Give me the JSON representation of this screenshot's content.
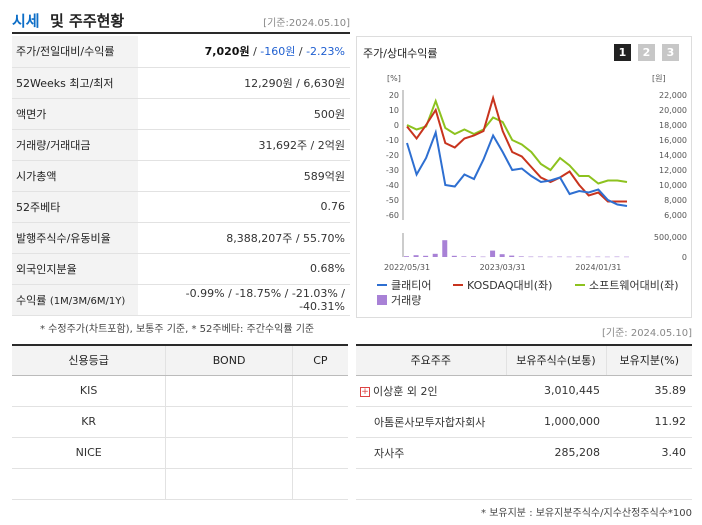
{
  "header": {
    "title_part1": "시세",
    "title_part2": "및 주주현황",
    "date": "[기준:2024.05.10]"
  },
  "info_rows": [
    {
      "label": "주가/전일대비/수익률",
      "price": "7,020원",
      "sep1": " / ",
      "change": "-160원",
      "sep2": " / ",
      "rate": "-2.23%"
    },
    {
      "label": "52Weeks 최고/최저",
      "value": "12,290원 / 6,630원"
    },
    {
      "label": "액면가",
      "value": "500원"
    },
    {
      "label": "거래량/거래대금",
      "value": "31,692주 / 2억원"
    },
    {
      "label": "시가총액",
      "value": "589억원"
    },
    {
      "label": "52주베타",
      "value": "0.76"
    },
    {
      "label": "발행주식수/유동비율",
      "value": "8,388,207주 / 55.70%"
    },
    {
      "label": "외국인지분율",
      "value": "0.68%"
    },
    {
      "label": "수익률",
      "label_sub": "(1M/3M/6M/1Y)",
      "value": "-0.99% / -18.75% / -21.03% / -40.31%"
    }
  ],
  "chart_panel": {
    "title": "주가/상대수익률",
    "tabs": [
      "1",
      "2",
      "3"
    ]
  },
  "chart_data": {
    "type": "line",
    "left_axis_unit": "[%]",
    "right_axis_unit": "[원]",
    "left_ticks": [
      "20",
      "10",
      "0",
      "-10",
      "-20",
      "-30",
      "-40",
      "-50",
      "-60"
    ],
    "right_ticks": [
      "22,000",
      "20,000",
      "18,000",
      "16,000",
      "14,000",
      "12,000",
      "10,000",
      "8,000",
      "6,000"
    ],
    "volume_ticks": [
      "500,000",
      "0"
    ],
    "x_labels": [
      "2022/05/31",
      "2023/03/31",
      "2024/01/31"
    ],
    "series": [
      {
        "name": "클래티어",
        "color": "#2e6fd1",
        "values": [
          -12,
          -33,
          -22,
          -5,
          -40,
          -41,
          -33,
          -36,
          -23,
          -7,
          -18,
          -30,
          -29,
          -34,
          -38,
          -37,
          -35,
          -46,
          -44,
          -45,
          -43,
          -50,
          -53,
          -54
        ]
      },
      {
        "name": "KOSDAQ대비(좌)",
        "color": "#c8341e",
        "values": [
          -1,
          -9,
          0,
          10,
          -12,
          -15,
          -9,
          -7,
          -4,
          18,
          -4,
          -18,
          -21,
          -28,
          -35,
          -38,
          -35,
          -31,
          -40,
          -47,
          -45,
          -51,
          -51,
          -51
        ]
      },
      {
        "name": "소프트웨어대비(좌)",
        "color": "#8dc21f",
        "values": [
          0,
          -3,
          -1,
          16,
          -2,
          -6,
          -3,
          -6,
          -3,
          5,
          2,
          -10,
          -13,
          -18,
          -26,
          -30,
          -22,
          -27,
          -34,
          -34,
          -39,
          -37,
          -37,
          -38
        ]
      }
    ],
    "volume": {
      "name": "거래량",
      "color": "#a881d6",
      "values": [
        20000,
        45000,
        30000,
        80000,
        420000,
        30000,
        15000,
        20000,
        10000,
        160000,
        70000,
        35000,
        15000,
        10000,
        10000,
        8000,
        10000,
        8000,
        10000,
        8000,
        10000,
        8000,
        10000,
        8000
      ]
    }
  },
  "notes": {
    "left": "* 수정주가(차트포함), 보통주 기준, * 52주베타: 주간수익률 기준",
    "right_date": "[기준: 2024.05.10]"
  },
  "credit": {
    "headers": [
      "신용등급",
      "BOND",
      "CP"
    ],
    "rows": [
      [
        "KIS",
        "",
        ""
      ],
      [
        "KR",
        "",
        ""
      ],
      [
        "NICE",
        "",
        ""
      ],
      [
        "",
        "",
        ""
      ]
    ]
  },
  "holders": {
    "headers": [
      "주요주주",
      "보유주식수(보통)",
      "보유지분(%)"
    ],
    "rows": [
      {
        "name": "이상훈 외 2인",
        "shares": "3,010,445",
        "pct": "35.89",
        "expand": "+"
      },
      {
        "name": "아톰론사모투자합자회사",
        "shares": "1,000,000",
        "pct": "11.92"
      },
      {
        "name": "자사주",
        "shares": "285,208",
        "pct": "3.40"
      }
    ],
    "note": "* 보유지분 : 보유지분주식수/지수산정주식수*100"
  }
}
